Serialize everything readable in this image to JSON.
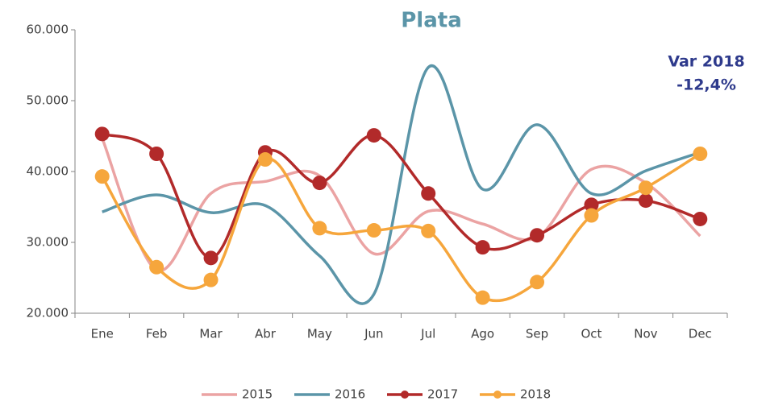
{
  "chart_data": {
    "type": "line",
    "title": "Plata",
    "annotation": [
      "Var 2018",
      "-12,4%"
    ],
    "categories": [
      "Ene",
      "Feb",
      "Mar",
      "Abr",
      "May",
      "Jun",
      "Jul",
      "Ago",
      "Sep",
      "Oct",
      "Nov",
      "Dec"
    ],
    "series": [
      {
        "name": "2015",
        "color": "#eba3a3",
        "markers": false,
        "values": [
          44700,
          26100,
          36900,
          38600,
          39400,
          28400,
          34400,
          32600,
          30700,
          40300,
          38400,
          30900
        ]
      },
      {
        "name": "2016",
        "color": "#5b95a8",
        "markers": false,
        "values": [
          34300,
          36700,
          34200,
          35200,
          28100,
          22700,
          54700,
          37500,
          46600,
          36900,
          40100,
          42700
        ]
      },
      {
        "name": "2017",
        "color": "#b22a2a",
        "markers": true,
        "values": [
          45300,
          42500,
          27800,
          42700,
          38400,
          45100,
          36900,
          29300,
          31000,
          35300,
          35900,
          33300
        ]
      },
      {
        "name": "2018",
        "color": "#f6a63c",
        "markers": true,
        "values": [
          39300,
          26500,
          24700,
          41700,
          32000,
          31700,
          31600,
          22200,
          24400,
          33800,
          37700,
          42500
        ]
      }
    ],
    "ylim": [
      20000,
      60000
    ],
    "yticks": [
      {
        "value": 20000,
        "label": "20.000"
      },
      {
        "value": 30000,
        "label": "30.000"
      },
      {
        "value": 40000,
        "label": "40.000"
      },
      {
        "value": 50000,
        "label": "50.000"
      },
      {
        "value": 60000,
        "label": "60.000"
      }
    ],
    "legend": "bottom"
  }
}
